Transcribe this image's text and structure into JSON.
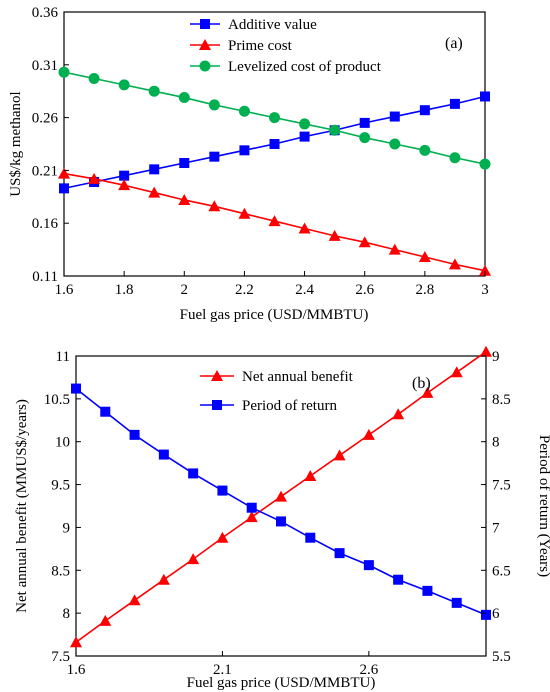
{
  "chart_data": [
    {
      "type": "line",
      "panel_label": "(a)",
      "xlabel": "Fuel gas price (USD/MMBTU)",
      "ylabel": "US$/kg methanol",
      "xlim": [
        1.6,
        3.0
      ],
      "ylim": [
        0.11,
        0.36
      ],
      "xticks": [
        "1.6",
        "1.8",
        "2",
        "2.2",
        "2.4",
        "2.6",
        "2.8",
        "3"
      ],
      "yticks": [
        "0.11",
        "0.16",
        "0.21",
        "0.26",
        "0.31",
        "0.36"
      ],
      "legend_position": "top-right",
      "grid": false,
      "x": [
        1.6,
        1.7,
        1.8,
        1.9,
        2.0,
        2.1,
        2.2,
        2.3,
        2.4,
        2.5,
        2.6,
        2.7,
        2.8,
        2.9,
        3.0
      ],
      "series": [
        {
          "name": "Additive value",
          "color": "#0000ff",
          "marker": "square",
          "values": [
            0.193,
            0.199,
            0.205,
            0.211,
            0.217,
            0.223,
            0.229,
            0.235,
            0.242,
            0.248,
            0.255,
            0.261,
            0.267,
            0.273,
            0.28
          ]
        },
        {
          "name": "Prime cost",
          "color": "#ff0000",
          "marker": "triangle",
          "values": [
            0.207,
            0.202,
            0.196,
            0.189,
            0.182,
            0.176,
            0.169,
            0.162,
            0.155,
            0.148,
            0.142,
            0.135,
            0.128,
            0.121,
            0.115
          ]
        },
        {
          "name": "Levelized cost of product",
          "color": "#00b050",
          "marker": "circle",
          "values": [
            0.303,
            0.297,
            0.291,
            0.285,
            0.279,
            0.272,
            0.266,
            0.26,
            0.254,
            0.248,
            0.241,
            0.235,
            0.229,
            0.222,
            0.216
          ]
        }
      ]
    },
    {
      "type": "line",
      "panel_label": "(b)",
      "xlabel": "Fuel gas price (USD/MMBTU)",
      "ylabel": "Net annual benefit (MMUS$/years)",
      "y2label": "Period of return (Years)",
      "xlim": [
        1.6,
        3.0
      ],
      "ylim": [
        7.5,
        11
      ],
      "y2lim": [
        5.5,
        9
      ],
      "xticks": [
        "1.6",
        "2.1",
        "2.6"
      ],
      "yticks": [
        "7.5",
        "8",
        "8.5",
        "9",
        "9.5",
        "10",
        "10.5",
        "11"
      ],
      "y2ticks": [
        "5.5",
        "6",
        "6.5",
        "7",
        "7.5",
        "8",
        "8.5",
        "9"
      ],
      "legend_position": "top-center",
      "grid": false,
      "x": [
        1.6,
        1.7,
        1.8,
        1.9,
        2.0,
        2.1,
        2.2,
        2.3,
        2.4,
        2.5,
        2.6,
        2.7,
        2.8,
        2.9,
        3.0
      ],
      "series": [
        {
          "name": "Net annual benefit",
          "color": "#ff0000",
          "marker": "triangle",
          "axis": "left",
          "values": [
            7.66,
            7.91,
            8.15,
            8.39,
            8.63,
            8.88,
            9.12,
            9.36,
            9.6,
            9.84,
            10.08,
            10.32,
            10.57,
            10.81,
            11.05
          ]
        },
        {
          "name": "Period of return",
          "color": "#0000ff",
          "marker": "square",
          "axis": "right",
          "values": [
            8.62,
            8.35,
            8.08,
            7.85,
            7.63,
            7.43,
            7.23,
            7.07,
            6.88,
            6.7,
            6.56,
            6.39,
            6.26,
            6.12,
            5.98
          ]
        }
      ]
    }
  ]
}
